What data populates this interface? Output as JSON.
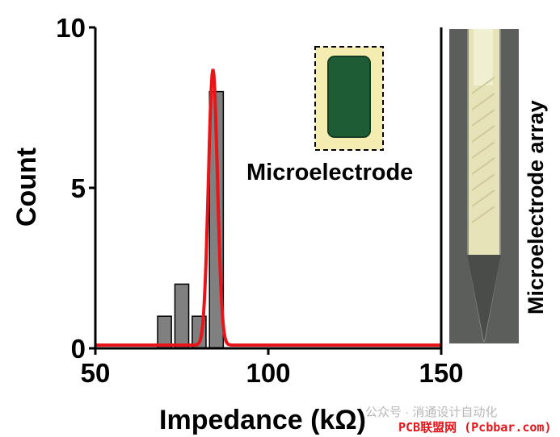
{
  "chart_data": {
    "type": "bar",
    "title": "",
    "xlabel": "Impedance (kΩ)",
    "ylabel": "Count",
    "xlim": [
      50,
      150
    ],
    "ylim": [
      0,
      10
    ],
    "x_ticks": [
      50,
      100,
      150
    ],
    "y_ticks": [
      0,
      5,
      10
    ],
    "bin_width": 4,
    "bins": [
      {
        "x": 70,
        "count": 1
      },
      {
        "x": 75,
        "count": 2
      },
      {
        "x": 80,
        "count": 1
      },
      {
        "x": 85,
        "count": 8
      }
    ],
    "fit_curve": {
      "type": "gaussian",
      "center": 84,
      "sigma": 1.3,
      "peak": 8.7,
      "baseline": 0.1,
      "color": "#e8141a"
    },
    "bar_color": "#808080"
  },
  "inset": {
    "microelectrode_label": "Microelectrode",
    "array_label": "Microelectrode array"
  },
  "watermark": {
    "wechat_text": "公众号 · 消通设计自动化",
    "site_text": "PCB联盟网 (Pcbbar.com)",
    "site_color": "#e8141a"
  }
}
